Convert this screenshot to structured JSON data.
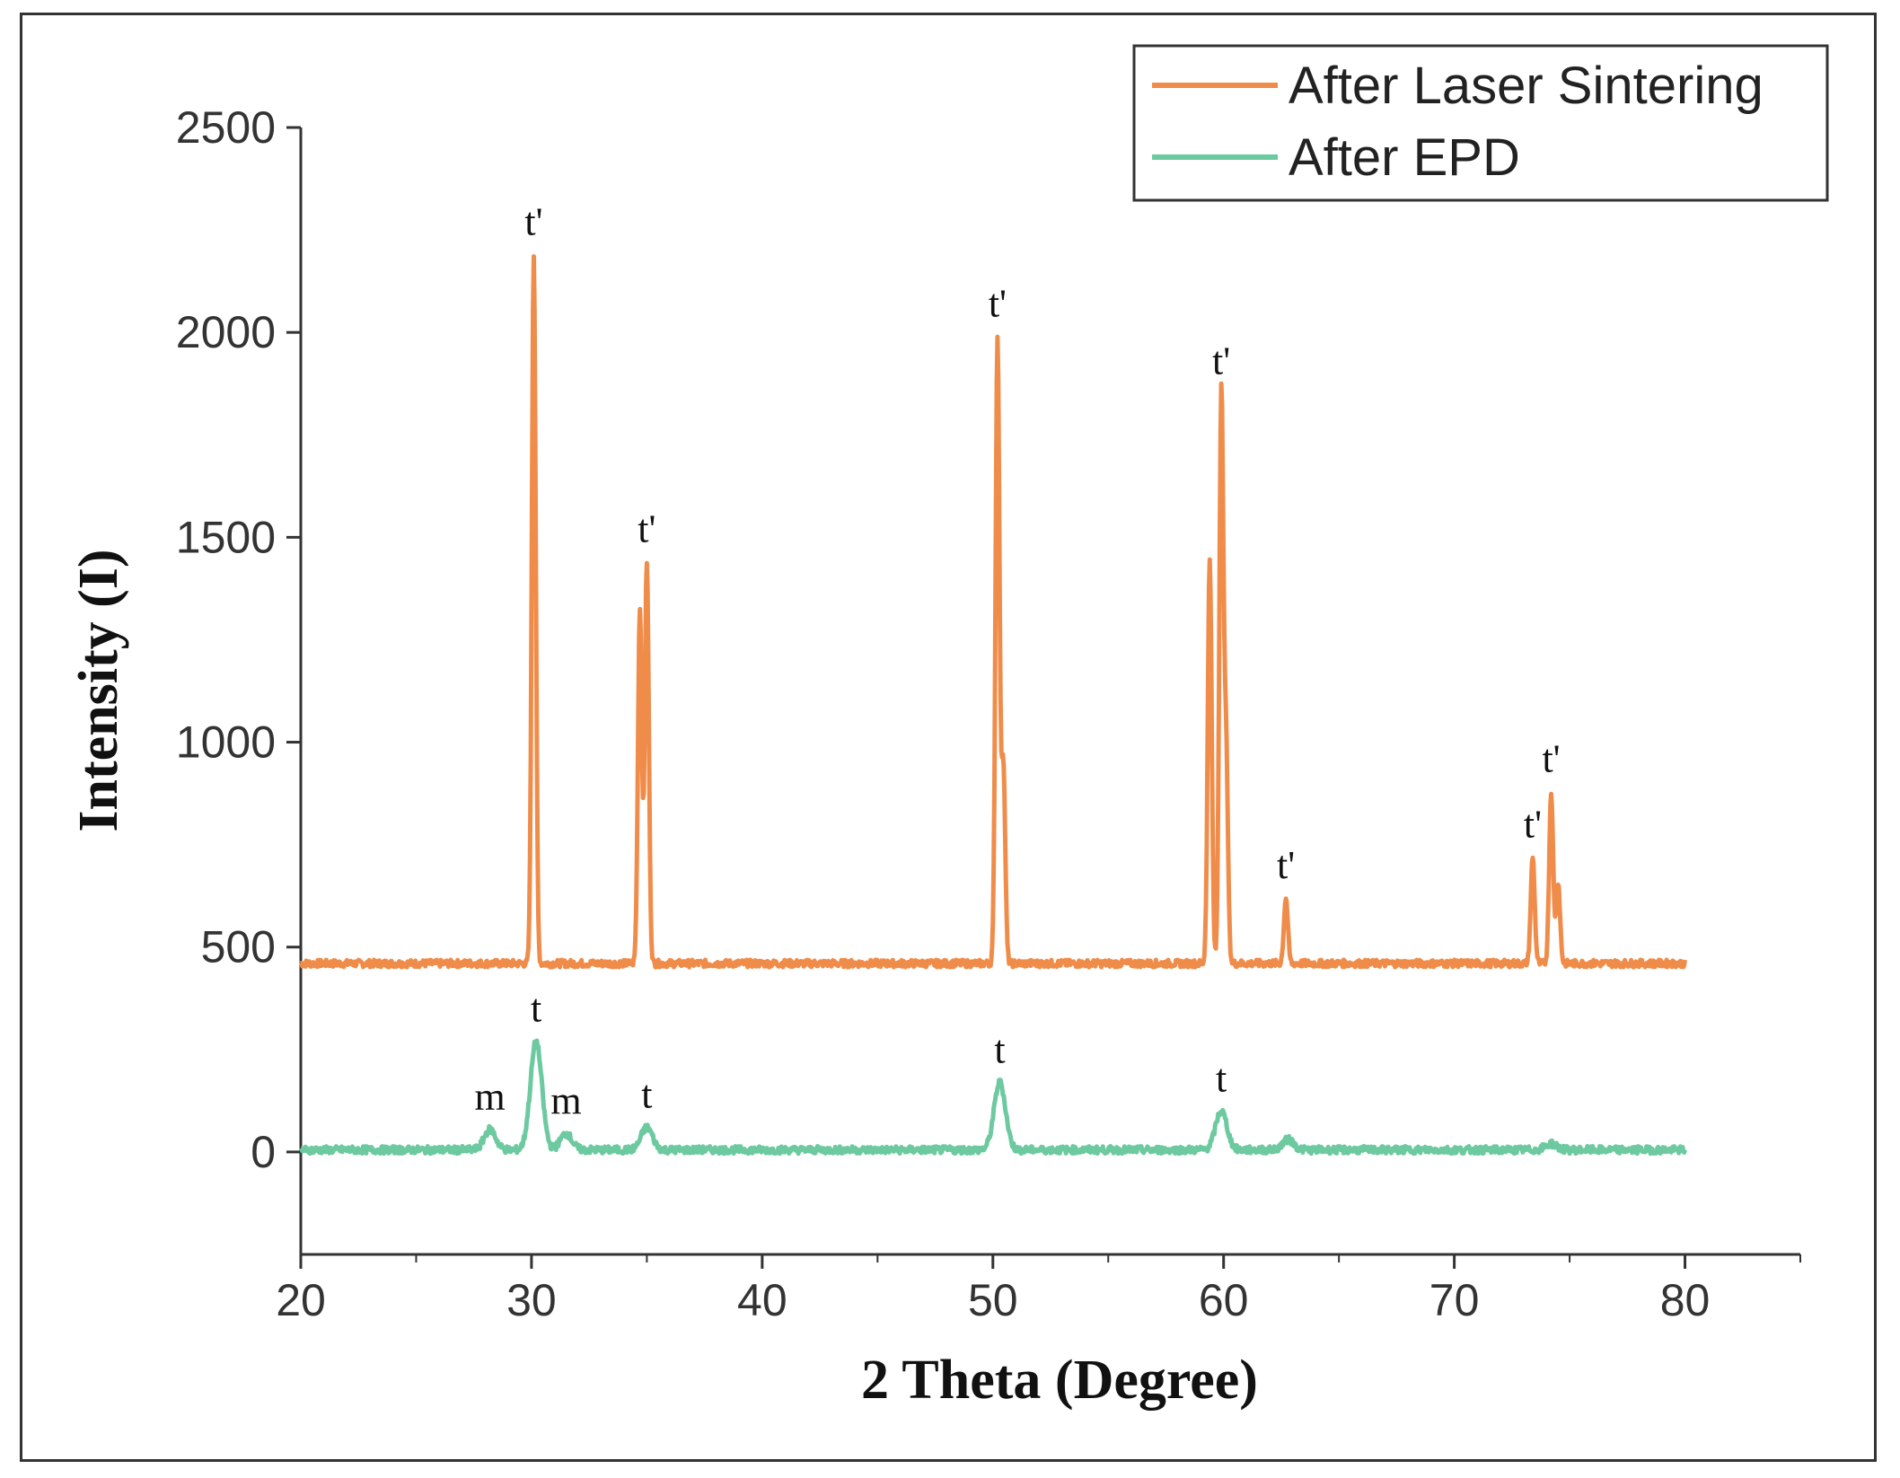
{
  "chart_data": {
    "type": "line",
    "title": "",
    "xlabel": "2 Theta (Degree)",
    "ylabel": "Intensity (I)",
    "xlim": [
      20,
      85
    ],
    "ylim": [
      -250,
      2500
    ],
    "x_ticks": [
      20,
      30,
      40,
      50,
      60,
      70,
      80
    ],
    "y_ticks": [
      0,
      500,
      1000,
      1500,
      2000,
      2500
    ],
    "grid": false,
    "legend_position": "top-right",
    "series": [
      {
        "name": "After Laser Sintering",
        "color": "#F08C4A",
        "baseline": 460,
        "x_range": [
          20,
          80
        ],
        "peaks": [
          {
            "x": 30.1,
            "y": 2190,
            "label": "t'"
          },
          {
            "x": 34.7,
            "y": 1330
          },
          {
            "x": 35.0,
            "y": 1440,
            "label": "t'"
          },
          {
            "x": 50.2,
            "y": 1990,
            "label": "t'"
          },
          {
            "x": 50.45,
            "y": 950
          },
          {
            "x": 59.4,
            "y": 1450
          },
          {
            "x": 59.9,
            "y": 1850,
            "label": "t'"
          },
          {
            "x": 60.1,
            "y": 1000
          },
          {
            "x": 62.7,
            "y": 620,
            "label": "t'"
          },
          {
            "x": 73.4,
            "y": 720,
            "label": "t'"
          },
          {
            "x": 74.2,
            "y": 880,
            "label": "t'"
          },
          {
            "x": 74.5,
            "y": 660
          }
        ]
      },
      {
        "name": "After EPD",
        "color": "#6CC9A0",
        "baseline": 5,
        "x_range": [
          20,
          80
        ],
        "peaks": [
          {
            "x": 28.2,
            "y": 55,
            "label": "m"
          },
          {
            "x": 30.2,
            "y": 270,
            "label": "t"
          },
          {
            "x": 31.5,
            "y": 45,
            "label": "m"
          },
          {
            "x": 35.0,
            "y": 60,
            "label": "t"
          },
          {
            "x": 50.3,
            "y": 170,
            "label": "t"
          },
          {
            "x": 59.9,
            "y": 100,
            "label": "t"
          },
          {
            "x": 62.8,
            "y": 30
          },
          {
            "x": 74.2,
            "y": 20
          }
        ]
      }
    ]
  }
}
